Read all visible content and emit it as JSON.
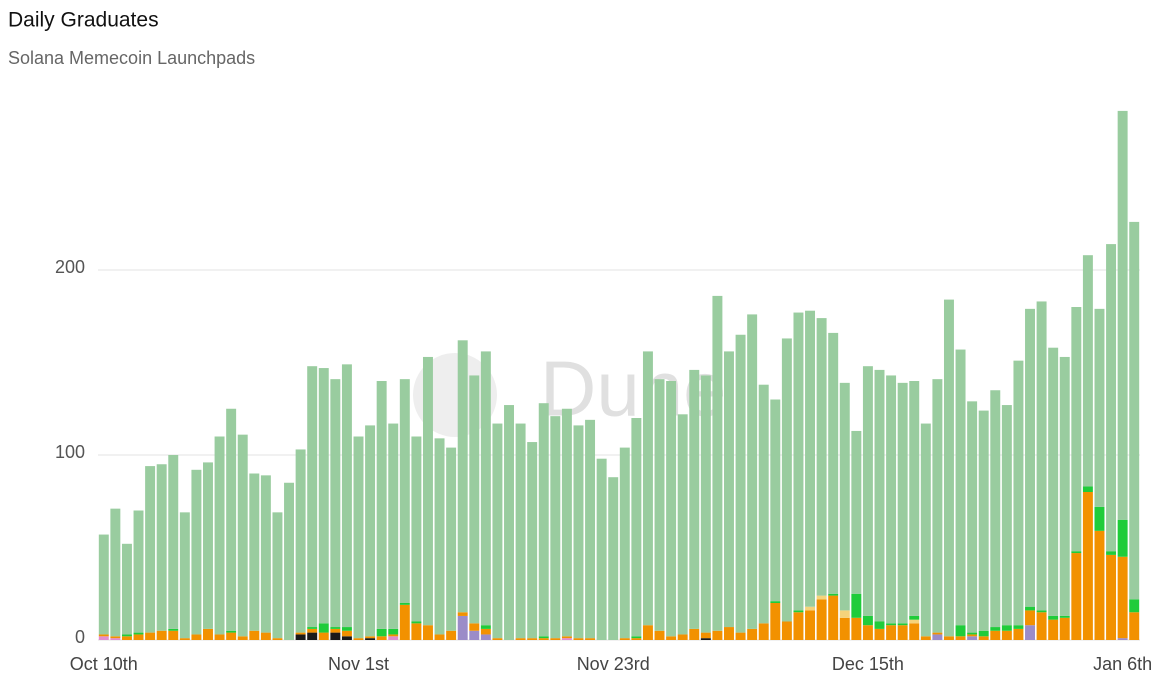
{
  "chart_data": {
    "type": "stacked_bar",
    "title": "Daily Graduates",
    "subtitle": "Solana Memecoin Launchpads",
    "watermark": "Dune",
    "categories": [
      "Oct 10th",
      null,
      null,
      null,
      null,
      null,
      null,
      null,
      null,
      null,
      null,
      null,
      null,
      null,
      null,
      null,
      null,
      null,
      null,
      null,
      null,
      null,
      "Nov 1st",
      null,
      null,
      null,
      null,
      null,
      null,
      null,
      null,
      null,
      null,
      null,
      null,
      null,
      null,
      null,
      null,
      null,
      null,
      null,
      null,
      null,
      "Nov 23rd",
      null,
      null,
      null,
      null,
      null,
      null,
      null,
      null,
      null,
      null,
      null,
      null,
      null,
      null,
      null,
      null,
      null,
      null,
      null,
      null,
      null,
      "Dec 15th",
      null,
      null,
      null,
      null,
      null,
      null,
      null,
      null,
      null,
      null,
      null,
      null,
      null,
      null,
      null,
      null,
      null,
      null,
      null,
      null,
      null,
      "Jan 6th",
      null
    ],
    "ylim": [
      0,
      300
    ],
    "yticks": [
      0,
      100,
      200
    ],
    "grid": true,
    "series": [
      {
        "color": "#1a1a1a",
        "values": [
          0,
          0,
          0,
          0,
          0,
          0,
          0,
          0,
          0,
          0,
          0,
          0,
          0,
          0,
          0,
          0,
          0,
          3,
          4,
          0,
          4,
          2,
          0,
          1,
          0,
          0,
          0,
          0,
          0,
          0,
          0,
          0,
          0,
          0,
          0,
          0,
          0,
          0,
          0,
          0,
          0,
          0,
          0,
          0,
          0,
          0,
          0,
          0,
          0,
          0,
          0,
          0,
          1,
          0,
          0,
          0,
          0,
          0,
          0,
          0,
          0,
          0,
          0,
          0,
          0,
          0,
          0,
          0,
          0,
          0,
          0,
          0,
          0,
          0,
          0,
          0,
          0,
          0,
          0,
          0,
          0,
          0,
          0,
          0,
          0,
          0,
          0,
          0,
          0,
          0
        ]
      },
      {
        "color": "#9b8cc8",
        "values": [
          0,
          0,
          0,
          0,
          0,
          0,
          0,
          0,
          0,
          0,
          0,
          0,
          0,
          0,
          0,
          0,
          0,
          0,
          0,
          0,
          0,
          0,
          0,
          0,
          0,
          0,
          0,
          0,
          0,
          0,
          0,
          13,
          5,
          3,
          0,
          0,
          0,
          0,
          0,
          0,
          0,
          0,
          0,
          0,
          0,
          0,
          0,
          0,
          0,
          0,
          0,
          0,
          0,
          0,
          0,
          0,
          0,
          0,
          0,
          0,
          0,
          0,
          0,
          0,
          0,
          0,
          0,
          0,
          0,
          0,
          0,
          0,
          3,
          0,
          0,
          2,
          0,
          0,
          0,
          0,
          8,
          0,
          0,
          0,
          0,
          0,
          0,
          0,
          1,
          0
        ]
      },
      {
        "color": "#e38ccf",
        "values": [
          2,
          1,
          0,
          0,
          0,
          0,
          0,
          0,
          0,
          0,
          0,
          0,
          0,
          0,
          0,
          0,
          0,
          0,
          0,
          0,
          0,
          0,
          0,
          0,
          0,
          2,
          0,
          0,
          0,
          0,
          0,
          0,
          0,
          0,
          0,
          0,
          0,
          0,
          0,
          0,
          1,
          0,
          0,
          0,
          0,
          0,
          0,
          0,
          0,
          0,
          0,
          0,
          0,
          0,
          0,
          0,
          0,
          0,
          0,
          0,
          0,
          0,
          0,
          0,
          0,
          0,
          0,
          0,
          0,
          0,
          0,
          0,
          0,
          0,
          0,
          0,
          0,
          0,
          0,
          0,
          0,
          0,
          0,
          0,
          0,
          0,
          0,
          0,
          0,
          0
        ]
      },
      {
        "color": "#f29100",
        "values": [
          1,
          1,
          2,
          3,
          4,
          5,
          5,
          1,
          3,
          6,
          3,
          4,
          2,
          5,
          4,
          1,
          0,
          1,
          2,
          4,
          2,
          3,
          1,
          1,
          2,
          1,
          19,
          9,
          8,
          3,
          5,
          2,
          4,
          3,
          1,
          0,
          1,
          1,
          1,
          1,
          1,
          1,
          1,
          0,
          0,
          1,
          1,
          8,
          5,
          2,
          3,
          6,
          3,
          5,
          7,
          4,
          6,
          9,
          20,
          10,
          15,
          16,
          22,
          24,
          12,
          12,
          8,
          6,
          8,
          8,
          9,
          2,
          1,
          2,
          2,
          1,
          2,
          5,
          5,
          6,
          8,
          15,
          11,
          12,
          47,
          80,
          59,
          46,
          44,
          15
        ]
      },
      {
        "color": "#f5d37a",
        "values": [
          0,
          0,
          0,
          0,
          0,
          0,
          0,
          0,
          0,
          0,
          0,
          0,
          0,
          0,
          0,
          0,
          0,
          0,
          0,
          0,
          0,
          0,
          0,
          0,
          0,
          0,
          0,
          0,
          0,
          0,
          0,
          0,
          0,
          0,
          0,
          0,
          0,
          0,
          0,
          0,
          0,
          0,
          0,
          0,
          0,
          0,
          0,
          0,
          0,
          0,
          0,
          0,
          0,
          0,
          0,
          0,
          0,
          0,
          0,
          0,
          0,
          2,
          2,
          0,
          4,
          0,
          0,
          0,
          0,
          0,
          2,
          0,
          0,
          0,
          0,
          0,
          0,
          0,
          0,
          0,
          0,
          0,
          0,
          0,
          0,
          0,
          0,
          0,
          0,
          0
        ]
      },
      {
        "color": "#1fcc3a",
        "values": [
          0,
          0,
          1,
          1,
          0,
          0,
          1,
          0,
          0,
          0,
          0,
          1,
          0,
          0,
          0,
          0,
          0,
          0,
          1,
          5,
          1,
          2,
          0,
          0,
          4,
          3,
          1,
          1,
          0,
          0,
          0,
          0,
          0,
          2,
          0,
          0,
          0,
          0,
          1,
          0,
          0,
          0,
          0,
          0,
          0,
          0,
          1,
          0,
          0,
          0,
          0,
          0,
          0,
          0,
          0,
          0,
          0,
          0,
          1,
          0,
          1,
          0,
          0,
          1,
          0,
          13,
          5,
          4,
          1,
          1,
          2,
          0,
          0,
          0,
          6,
          1,
          3,
          2,
          3,
          2,
          2,
          1,
          2,
          1,
          1,
          3,
          13,
          2,
          20,
          7
        ]
      },
      {
        "color": "#99cc9f",
        "values": [
          54,
          69,
          49,
          66,
          90,
          90,
          94,
          68,
          89,
          90,
          107,
          120,
          109,
          85,
          85,
          68,
          85,
          99,
          141,
          138,
          134,
          142,
          109,
          114,
          134,
          111,
          121,
          100,
          145,
          106,
          99,
          147,
          134,
          148,
          116,
          127,
          116,
          106,
          126,
          120,
          123,
          115,
          118,
          98,
          88,
          103,
          118,
          148,
          136,
          138,
          119,
          140,
          139,
          181,
          149,
          161,
          170,
          129,
          109,
          153,
          161,
          160,
          150,
          141,
          123,
          88,
          135,
          136,
          134,
          130,
          127,
          115,
          137,
          182,
          149,
          125,
          119,
          128,
          119,
          143,
          161,
          167,
          145,
          140,
          132,
          125,
          107,
          166,
          221,
          204
        ]
      }
    ]
  }
}
